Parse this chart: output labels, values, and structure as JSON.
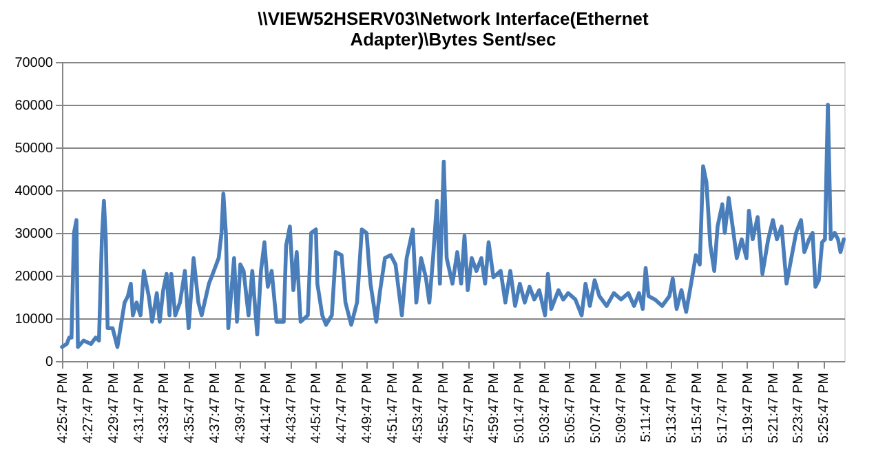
{
  "chart_data": {
    "type": "line",
    "title": "\\\\VIEW52HSERV03\\Network Interface(Ethernet Adapter)\\Bytes Sent/sec",
    "x": [
      16.4297,
      16.436,
      16.4392,
      16.4422,
      16.4455,
      16.4487,
      16.4506,
      16.4582,
      16.4677,
      16.474,
      16.4783,
      16.4821,
      16.4848,
      16.4873,
      16.4897,
      16.4962,
      16.5025,
      16.512,
      16.5163,
      16.5201,
      16.5228,
      16.5277,
      16.5329,
      16.5372,
      16.5437,
      16.5481,
      16.5543,
      16.5581,
      16.5627,
      16.5671,
      16.5709,
      16.5733,
      16.5785,
      16.5847,
      16.5912,
      16.5961,
      16.6026,
      16.6089,
      16.6132,
      16.6227,
      16.6292,
      16.6355,
      16.6393,
      16.6417,
      16.645,
      16.6482,
      16.6558,
      16.6596,
      16.664,
      16.6683,
      16.6748,
      16.6797,
      16.6862,
      16.6911,
      16.6957,
      16.7001,
      16.7052,
      16.7115,
      16.721,
      16.7242,
      16.7291,
      16.7337,
      16.7381,
      16.7432,
      16.7527,
      16.7571,
      16.7633,
      16.7652,
      16.7717,
      16.7766,
      16.7842,
      16.7894,
      16.797,
      16.8021,
      16.8097,
      16.8173,
      16.8236,
      16.8298,
      16.835,
      16.8426,
      16.8477,
      16.854,
      16.8616,
      16.8679,
      16.8762,
      16.8825,
      16.8906,
      16.8952,
      16.9015,
      16.9077,
      16.9123,
      16.9172,
      16.9224,
      16.9262,
      16.9313,
      16.9351,
      16.9427,
      16.949,
      16.9541,
      16.9585,
      16.9628,
      16.968,
      16.9742,
      16.9807,
      16.9856,
      16.9902,
      16.9965,
      17.006,
      17.0122,
      17.0187,
      17.025,
      17.0312,
      17.0377,
      17.044,
      17.0502,
      17.0567,
      17.0643,
      17.0681,
      17.0725,
      17.082,
      17.0882,
      17.0947,
      17.1042,
      17.1124,
      17.1175,
      17.1232,
      17.1295,
      17.1357,
      17.1452,
      17.1547,
      17.1642,
      17.1737,
      17.1813,
      17.1878,
      17.1927,
      17.1965,
      17.2003,
      17.2087,
      17.2182,
      17.2277,
      17.2321,
      17.2372,
      17.2435,
      17.2497,
      17.2562,
      17.2625,
      17.2676,
      17.272,
      17.2763,
      17.2815,
      17.2866,
      17.291,
      17.2972,
      17.3005,
      17.3056,
      17.3119,
      17.3162,
      17.3227,
      17.329,
      17.3322,
      17.3371,
      17.3436,
      17.3499,
      17.3575,
      17.3637,
      17.3689,
      17.3751,
      17.3816,
      17.3879,
      17.3941,
      17.4006,
      17.405,
      17.4112,
      17.4158,
      17.4196,
      17.424,
      17.4283,
      17.4321,
      17.4359,
      17.4397,
      17.4449,
      17.4492,
      17.4525,
      17.4568
    ],
    "series": [
      {
        "color": "#4a7ebb",
        "values": [
          3300,
          4000,
          5500,
          5500,
          30000,
          33000,
          3300,
          4800,
          4000,
          5500,
          4800,
          28500,
          37500,
          28500,
          7700,
          7700,
          3300,
          13700,
          15200,
          18100,
          10700,
          13700,
          10700,
          21100,
          15200,
          9200,
          15900,
          9200,
          16600,
          20400,
          10700,
          20400,
          10700,
          13700,
          21100,
          7700,
          24100,
          13700,
          10700,
          18100,
          21100,
          24100,
          30000,
          39200,
          30000,
          7700,
          24100,
          9200,
          22600,
          21100,
          10700,
          21100,
          6200,
          21100,
          27800,
          17400,
          21100,
          9200,
          9200,
          27100,
          31500,
          16600,
          25500,
          9200,
          10700,
          30000,
          30800,
          18100,
          10700,
          8500,
          10700,
          25500,
          24800,
          13700,
          8500,
          13700,
          30800,
          30000,
          18100,
          9200,
          16600,
          24100,
          24800,
          22600,
          10700,
          24100,
          30800,
          13700,
          24100,
          19600,
          13700,
          24100,
          37500,
          18100,
          46700,
          24100,
          18100,
          25500,
          18100,
          29300,
          16600,
          24100,
          21100,
          24100,
          18100,
          27800,
          19600,
          21100,
          13700,
          21100,
          12900,
          18100,
          13700,
          17400,
          14400,
          16600,
          10700,
          20400,
          12200,
          16600,
          14400,
          15900,
          14400,
          10700,
          18100,
          12900,
          18900,
          15200,
          12900,
          15900,
          14400,
          15900,
          12900,
          15900,
          12200,
          21800,
          15200,
          14400,
          12900,
          15200,
          19300,
          12200,
          16600,
          11500,
          18100,
          24800,
          22600,
          45600,
          41900,
          27100,
          21100,
          31500,
          36700,
          30000,
          38200,
          30000,
          24100,
          28500,
          24100,
          35200,
          28500,
          33700,
          20400,
          28500,
          33000,
          28500,
          31500,
          18100,
          24100,
          30000,
          33000,
          25500,
          28500,
          30000,
          17400,
          18900,
          27800,
          28500,
          60000,
          28500,
          30000,
          28500,
          25500,
          28500
        ]
      }
    ],
    "xlim": [
      16.4297,
      17.4575
    ],
    "xticks": [
      {
        "value": 16.4297,
        "label": "4:25:47 PM"
      },
      {
        "value": 16.4631,
        "label": "4:27:47 PM"
      },
      {
        "value": 16.4964,
        "label": "4:29:47 PM"
      },
      {
        "value": 16.5297,
        "label": "4:31:47 PM"
      },
      {
        "value": 16.5631,
        "label": "4:33:47 PM"
      },
      {
        "value": 16.5964,
        "label": "4:35:47 PM"
      },
      {
        "value": 16.6297,
        "label": "4:37:47 PM"
      },
      {
        "value": 16.6631,
        "label": "4:39:47 PM"
      },
      {
        "value": 16.6964,
        "label": "4:41:47 PM"
      },
      {
        "value": 16.7297,
        "label": "4:43:47 PM"
      },
      {
        "value": 16.7631,
        "label": "4:45:47 PM"
      },
      {
        "value": 16.7964,
        "label": "4:47:47 PM"
      },
      {
        "value": 16.8297,
        "label": "4:49:47 PM"
      },
      {
        "value": 16.8631,
        "label": "4:51:47 PM"
      },
      {
        "value": 16.8964,
        "label": "4:53:47 PM"
      },
      {
        "value": 16.9297,
        "label": "4:55:47 PM"
      },
      {
        "value": 16.9631,
        "label": "4:57:47 PM"
      },
      {
        "value": 16.9964,
        "label": "4:59:47 PM"
      },
      {
        "value": 17.0297,
        "label": "5:01:47 PM"
      },
      {
        "value": 17.0631,
        "label": "5:03:47 PM"
      },
      {
        "value": 17.0964,
        "label": "5:05:47 PM"
      },
      {
        "value": 17.1297,
        "label": "5:07:47 PM"
      },
      {
        "value": 17.1631,
        "label": "5:09:47 PM"
      },
      {
        "value": 17.1964,
        "label": "5:11:47 PM"
      },
      {
        "value": 17.2297,
        "label": "5:13:47 PM"
      },
      {
        "value": 17.2631,
        "label": "5:15:47 PM"
      },
      {
        "value": 17.2964,
        "label": "5:17:47 PM"
      },
      {
        "value": 17.3297,
        "label": "5:19:47 PM"
      },
      {
        "value": 17.3631,
        "label": "5:21:47 PM"
      },
      {
        "value": 17.3964,
        "label": "5:23:47 PM"
      },
      {
        "value": 17.4297,
        "label": "5:25:47 PM"
      }
    ],
    "ylim": [
      0,
      70000
    ],
    "yticks": [
      0,
      10000,
      20000,
      30000,
      40000,
      50000,
      60000,
      70000
    ],
    "grid": "y",
    "legend": false,
    "marker": "none",
    "line_style": "solid"
  }
}
